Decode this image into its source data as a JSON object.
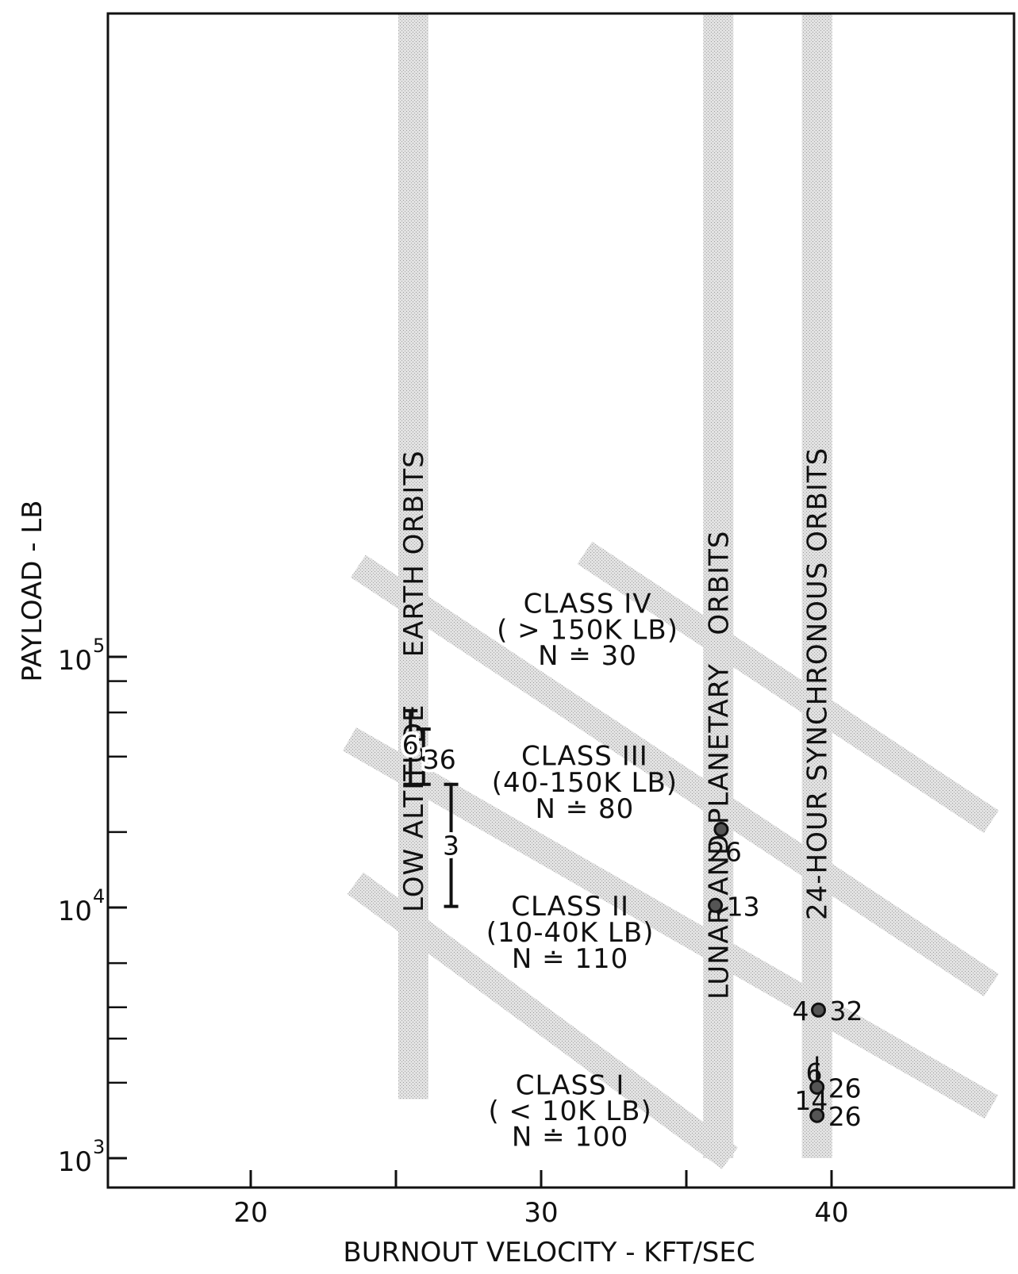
{
  "chart_data": {
    "type": "scatter",
    "xlabel": "BURNOUT VELOCITY - KFT/SEC",
    "ylabel": "PAYLOAD - LB",
    "xlim": [
      15,
      45.5
    ],
    "ylim": [
      1000,
      270000
    ],
    "y_scale": "log",
    "x_ticks": [
      20,
      25,
      30,
      35,
      40
    ],
    "x_tick_labels": [
      {
        "x": 20,
        "label": "20"
      },
      {
        "x": 30,
        "label": "30"
      },
      {
        "x": 40,
        "label": "40"
      }
    ],
    "y_major_ticks": [
      {
        "y": 1000,
        "base": "10",
        "exp": "3"
      },
      {
        "y": 10000,
        "base": "10",
        "exp": "4"
      },
      {
        "y": 100000,
        "base": "10",
        "exp": "5"
      }
    ],
    "y_minor_ticks": [
      2000,
      3000,
      4000,
      6000,
      20000,
      40000,
      60000,
      80000
    ],
    "classes": [
      {
        "lines": [
          "CLASS IV",
          "( > 150K LB)",
          "N ≐ 30"
        ],
        "x": 31.6,
        "y": [
          150000,
          118000,
          93000
        ]
      },
      {
        "lines": [
          "CLASS III",
          "(40-150K LB)",
          "N ≐ 80"
        ],
        "x": 31.5,
        "y": [
          37000,
          29000,
          22800
        ]
      },
      {
        "lines": [
          "CLASS II",
          "(10-40K LB)",
          "N ≐ 110"
        ],
        "x": 31.0,
        "y": [
          9300,
          7300,
          5750
        ]
      },
      {
        "lines": [
          "CLASS I",
          "( < 10K LB)",
          "N ≐ 100"
        ],
        "x": 31.0,
        "y": [
          1800,
          1420,
          1120
        ]
      }
    ],
    "vertical_bands": [
      {
        "label": "LOW ALTITUDE     EARTH ORBITS",
        "x": 25.6,
        "y_range": [
          1720,
          260000
        ]
      },
      {
        "label": "LUNAR AND PLANETARY   ORBITS",
        "x": 36.1,
        "y_range": [
          1000,
          260000
        ]
      },
      {
        "label": "24-HOUR SYNCHRONOUS ORBITS",
        "x": 39.5,
        "y_range": [
          1000,
          260000
        ]
      }
    ],
    "diagonal_bands": [
      {
        "from": [
          23.6,
          12500
        ],
        "to": [
          36.5,
          1000
        ]
      },
      {
        "from": [
          23.4,
          47000
        ],
        "to": [
          45.5,
          1600
        ]
      },
      {
        "from": [
          23.7,
          230000
        ],
        "to": [
          45.5,
          4900
        ]
      },
      {
        "from": [
          31.5,
          260000
        ],
        "to": [
          45.5,
          22000
        ]
      }
    ],
    "ranges": [
      {
        "label": "6",
        "x": 25.5,
        "y_low": 31000,
        "y_high": 61000
      },
      {
        "label": "36",
        "x": 25.95,
        "y_low": 31000,
        "y_high": 51500
      },
      {
        "label": "3",
        "x": 26.9,
        "y_low": 10100,
        "y_high": 31000
      }
    ],
    "points": [
      {
        "label": "26",
        "x": 36.2,
        "y": 20500
      },
      {
        "label": "13",
        "x": 36.0,
        "y": 10200
      },
      {
        "label": "4",
        "label2": "32",
        "x": 39.55,
        "y": 3900
      },
      {
        "label": "26",
        "x": 39.5,
        "y": 1920
      },
      {
        "label": "26",
        "x": 39.5,
        "y": 1480
      }
    ],
    "point_side_labels": [
      {
        "label": "6",
        "x": 39.4,
        "y": 2200
      },
      {
        "label": "14",
        "x": 39.3,
        "y": 1700
      }
    ],
    "legend": "none",
    "grid": false
  }
}
